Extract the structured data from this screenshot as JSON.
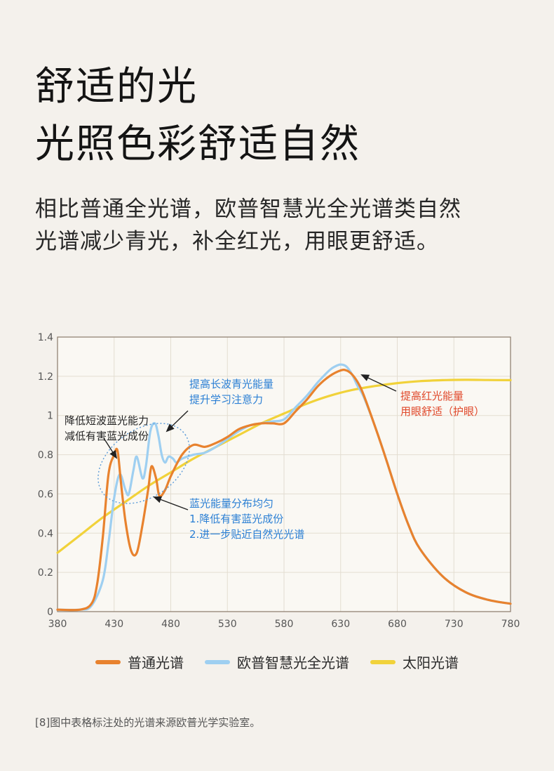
{
  "heading": {
    "line1": "舒适的光",
    "line2": "光照色彩舒适自然"
  },
  "subheading": {
    "line1": "相比普通全光谱，欧普智慧光全光谱类自然",
    "line2": "光谱减少青光，补全红光，用眼更舒适。"
  },
  "footnote": "[8]图中表格标注处的光谱来源欧普光学实验室。",
  "colors": {
    "normal": "#e8822e",
    "opple": "#9ecff1",
    "sun": "#f1d23a",
    "annotation_blue": "#2b7fd4",
    "annotation_red": "#e0482a"
  },
  "chart_data": {
    "type": "line",
    "xlabel": "",
    "ylabel": "",
    "xlim": [
      380,
      780
    ],
    "ylim": [
      0,
      1.4
    ],
    "x_ticks": [
      "380",
      "430",
      "480",
      "530",
      "580",
      "630",
      "680",
      "730",
      "780"
    ],
    "y_ticks": [
      "0",
      "0.2",
      "0.4",
      "0.6",
      "0.8",
      "1",
      "1.2",
      "1.4"
    ],
    "grid": true,
    "legend_position": "bottom",
    "series": [
      {
        "name": "普通光谱",
        "color": "#e8822e",
        "x": [
          380,
          400,
          410,
          415,
          420,
          425,
          430,
          433,
          436,
          440,
          445,
          450,
          455,
          460,
          463,
          467,
          470,
          475,
          480,
          490,
          500,
          510,
          520,
          530,
          540,
          550,
          560,
          570,
          580,
          590,
          600,
          610,
          620,
          630,
          635,
          640,
          645,
          650,
          660,
          670,
          680,
          690,
          700,
          720,
          740,
          760,
          780
        ],
        "y": [
          0.01,
          0.01,
          0.04,
          0.14,
          0.38,
          0.7,
          0.8,
          0.82,
          0.66,
          0.46,
          0.31,
          0.3,
          0.44,
          0.62,
          0.74,
          0.68,
          0.59,
          0.62,
          0.69,
          0.8,
          0.85,
          0.84,
          0.86,
          0.89,
          0.93,
          0.95,
          0.96,
          0.96,
          0.96,
          1.02,
          1.08,
          1.15,
          1.2,
          1.23,
          1.23,
          1.21,
          1.17,
          1.11,
          0.95,
          0.78,
          0.6,
          0.44,
          0.32,
          0.18,
          0.1,
          0.06,
          0.04
        ]
      },
      {
        "name": "欧普智慧光全光谱",
        "color": "#9ecff1",
        "x": [
          380,
          400,
          410,
          420,
          425,
          430,
          435,
          440,
          443,
          447,
          450,
          455,
          458,
          462,
          466,
          469,
          472,
          475,
          478,
          482,
          485,
          490,
          500,
          510,
          520,
          530,
          540,
          550,
          560,
          570,
          580,
          590,
          600,
          610,
          620,
          625,
          630,
          635,
          640,
          645,
          650,
          660,
          670,
          680,
          690,
          700,
          720,
          740,
          760,
          780
        ],
        "y": [
          0.01,
          0.01,
          0.03,
          0.16,
          0.35,
          0.58,
          0.7,
          0.62,
          0.6,
          0.72,
          0.79,
          0.68,
          0.74,
          0.92,
          0.96,
          0.9,
          0.8,
          0.76,
          0.79,
          0.78,
          0.76,
          0.78,
          0.8,
          0.81,
          0.84,
          0.88,
          0.92,
          0.95,
          0.96,
          0.97,
          0.98,
          1.04,
          1.1,
          1.17,
          1.23,
          1.25,
          1.26,
          1.25,
          1.21,
          1.15,
          1.1,
          0.95,
          0.78,
          0.6,
          0.44,
          0.32,
          0.18,
          0.1,
          0.06,
          0.04
        ]
      },
      {
        "name": "太阳光谱",
        "color": "#f1d23a",
        "x": [
          380,
          400,
          420,
          440,
          460,
          480,
          500,
          520,
          540,
          560,
          580,
          600,
          620,
          640,
          660,
          680,
          700,
          720,
          740,
          760,
          780
        ],
        "y": [
          0.3,
          0.39,
          0.48,
          0.56,
          0.64,
          0.71,
          0.78,
          0.84,
          0.9,
          0.96,
          1.01,
          1.06,
          1.1,
          1.13,
          1.15,
          1.165,
          1.175,
          1.18,
          1.182,
          1.181,
          1.18
        ]
      }
    ],
    "annotations": [
      {
        "id": "a1",
        "lines": [
          "提高长波青光能量",
          "提升学习注意力"
        ]
      },
      {
        "id": "a2",
        "lines": [
          "降低短波蓝光能力",
          "减低有害蓝光成份"
        ]
      },
      {
        "id": "a3",
        "lines": [
          "蓝光能量分布均匀",
          "1.降低有害蓝光成份",
          "2.进一步贴近自然光光谱"
        ]
      },
      {
        "id": "a4",
        "lines": [
          "提高红光能量",
          "用眼舒适（护眼）"
        ]
      }
    ]
  }
}
